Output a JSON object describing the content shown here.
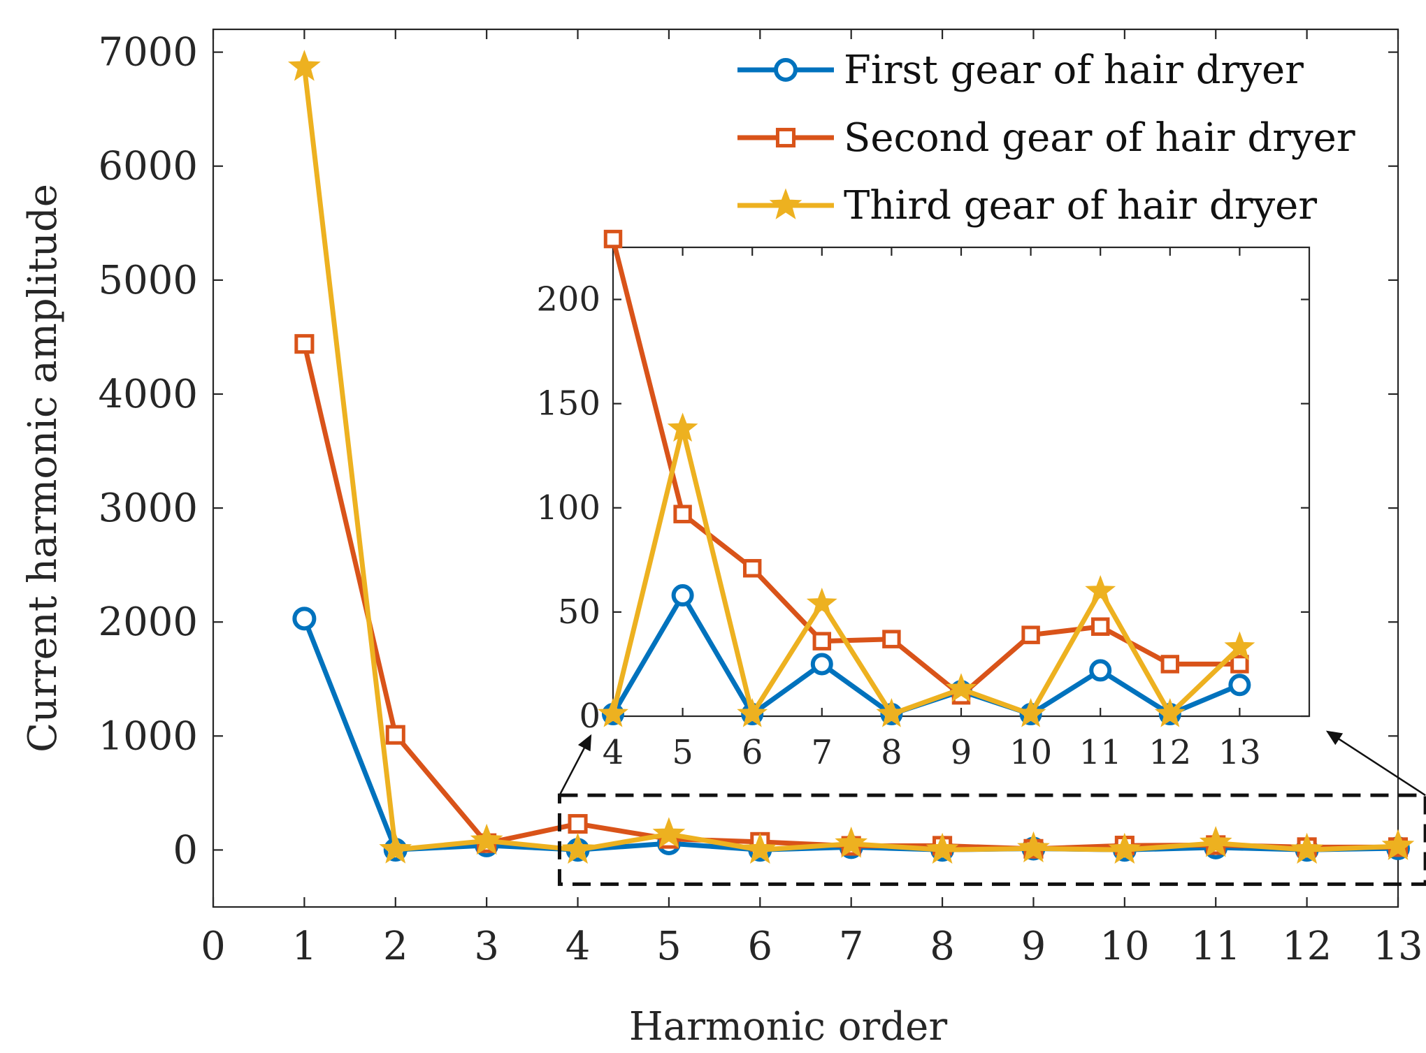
{
  "chart_data": [
    {
      "type": "line",
      "panel": "main",
      "title": "",
      "xlabel": "Harmonic order",
      "ylabel": "Current harmonic amplitude",
      "xlim": [
        0,
        13
      ],
      "ylim": [
        -500,
        7200
      ],
      "x_ticks": [
        0,
        1,
        2,
        3,
        4,
        5,
        6,
        7,
        8,
        9,
        10,
        11,
        12,
        13
      ],
      "y_ticks": [
        0,
        1000,
        2000,
        3000,
        4000,
        5000,
        6000,
        7000
      ],
      "x_tick_labels": [
        "0",
        "1",
        "2",
        "3",
        "4",
        "5",
        "6",
        "7",
        "8",
        "9",
        "10",
        "11",
        "12",
        "13"
      ],
      "y_tick_labels": [
        "0",
        "1000",
        "2000",
        "3000",
        "4000",
        "5000",
        "6000",
        "7000"
      ],
      "x": [
        1,
        2,
        3,
        4,
        5,
        6,
        7,
        8,
        9,
        10,
        11,
        12,
        13
      ],
      "series": [
        {
          "name": "First gear of hair dryer",
          "color": "#0072BD",
          "marker": "circle",
          "values": [
            2030,
            2,
            40,
            1,
            58,
            1,
            25,
            1,
            12,
            1,
            22,
            1,
            15
          ]
        },
        {
          "name": "Second gear of hair dryer",
          "color": "#D95319",
          "marker": "square",
          "values": [
            4440,
            1010,
            60,
            229,
            97,
            71,
            36,
            37,
            10,
            39,
            43,
            25,
            25
          ]
        },
        {
          "name": "Third gear of hair dryer",
          "color": "#EDB120",
          "marker": "star",
          "values": [
            6870,
            3,
            80,
            1,
            138,
            1,
            54,
            1,
            13,
            1,
            60,
            1,
            33
          ]
        }
      ],
      "legend_position": "top-right",
      "zoom_box_x": [
        3.8,
        13.3
      ],
      "zoom_box_y": [
        -300,
        480
      ]
    },
    {
      "type": "line",
      "panel": "inset",
      "xlim": [
        4,
        14
      ],
      "ylim": [
        0,
        225
      ],
      "x_ticks": [
        4,
        5,
        6,
        7,
        8,
        9,
        10,
        11,
        12,
        13
      ],
      "y_ticks": [
        0,
        50,
        100,
        150,
        200
      ],
      "x_tick_labels": [
        "4",
        "5",
        "6",
        "7",
        "8",
        "9",
        "10",
        "11",
        "12",
        "13"
      ],
      "y_tick_labels": [
        "0",
        "50",
        "100",
        "150",
        "200"
      ],
      "x": [
        4,
        5,
        6,
        7,
        8,
        9,
        10,
        11,
        12,
        13
      ],
      "series": [
        {
          "name": "First gear of hair dryer",
          "color": "#0072BD",
          "marker": "circle",
          "values": [
            1,
            58,
            1,
            25,
            1,
            12,
            1,
            22,
            1,
            15
          ]
        },
        {
          "name": "Second gear of hair dryer",
          "color": "#D95319",
          "marker": "square",
          "values": [
            229,
            97,
            71,
            36,
            37,
            10,
            39,
            43,
            25,
            25
          ]
        },
        {
          "name": "Third gear of hair dryer",
          "color": "#EDB120",
          "marker": "star",
          "values": [
            1,
            138,
            1,
            54,
            1,
            13,
            1,
            60,
            1,
            33
          ]
        }
      ]
    }
  ]
}
